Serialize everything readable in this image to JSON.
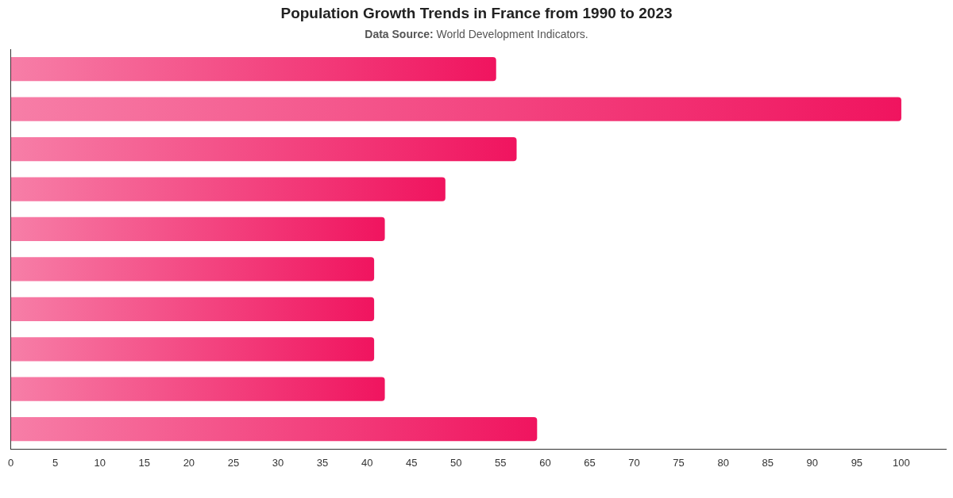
{
  "chart_data": {
    "type": "bar",
    "orientation": "horizontal",
    "title": "Population Growth Trends in France from 1990 to 2023",
    "subtitle": "Data Source: World Development Indicators.",
    "categories": [
      null,
      null,
      null,
      null,
      null,
      null,
      null,
      null,
      null,
      null
    ],
    "values": [
      54.5,
      100,
      56.8,
      48.8,
      42,
      40.8,
      40.8,
      40.8,
      42,
      59.1
    ],
    "color": "#f0145f",
    "xlim": [
      0,
      105
    ],
    "xticks": [
      0,
      5,
      10,
      15,
      20,
      25,
      30,
      35,
      40,
      45,
      50,
      55,
      60,
      65,
      70,
      75,
      80,
      85,
      90,
      95,
      100
    ],
    "grid": false,
    "legend": false
  }
}
